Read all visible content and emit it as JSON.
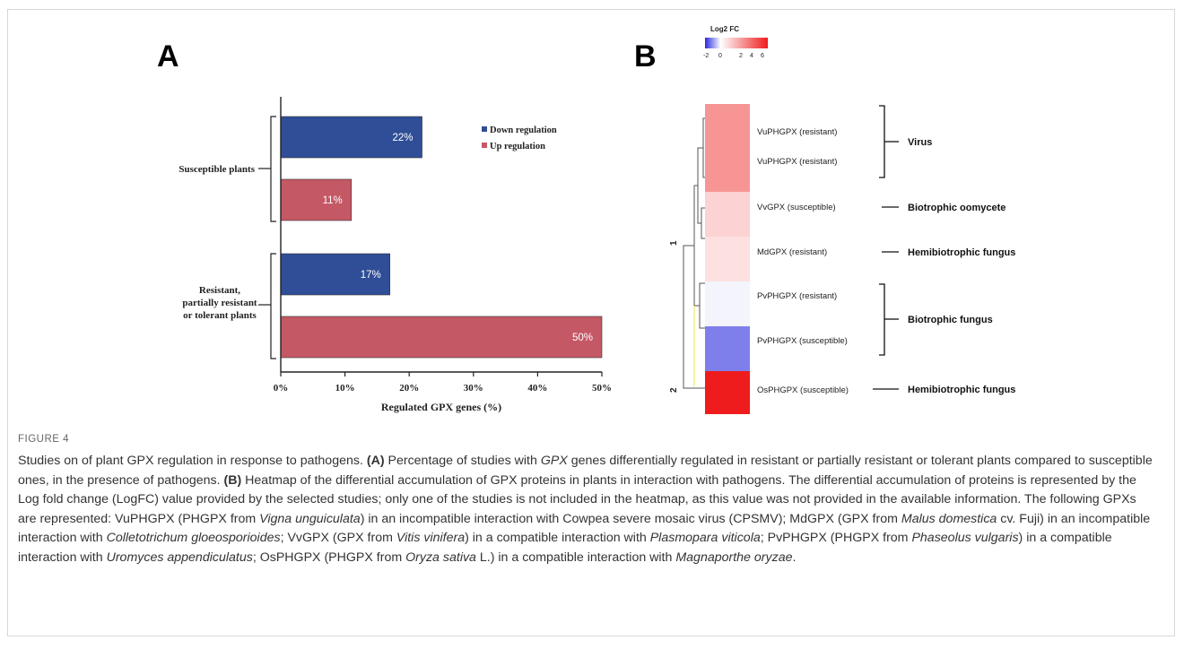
{
  "panel_a": {
    "letter": "A",
    "legend": {
      "down": "Down regulation",
      "up": "Up regulation"
    },
    "colors": {
      "down": "#2f4e97",
      "up": "#c45865"
    },
    "group_labels": {
      "susceptible": [
        "Susceptible plants"
      ],
      "resistant": [
        "Resistant,",
        "partially resistant",
        "or tolerant plants"
      ]
    },
    "tick_labels": [
      "0%",
      "10%",
      "20%",
      "30%",
      "40%",
      "50%"
    ],
    "bar_labels": [
      "22%",
      "11%",
      "17%",
      "50%"
    ]
  },
  "chart_data": {
    "type": "bar",
    "orientation": "horizontal",
    "categories": [
      "Susceptible plants",
      "Resistant, partially resistant or tolerant plants"
    ],
    "series": [
      {
        "name": "Down regulation",
        "values": [
          22,
          17
        ],
        "color": "#2f4e97"
      },
      {
        "name": "Up regulation",
        "values": [
          11,
          50
        ],
        "color": "#c45865"
      }
    ],
    "xlabel": "Regulated GPX genes (%)",
    "xlim": [
      0,
      50
    ],
    "xticks": [
      0,
      10,
      20,
      30,
      40,
      50
    ],
    "legend": "top-right",
    "grid": false
  },
  "panel_b": {
    "letter": "B",
    "legend_title": "Log2 FC",
    "legend_ticks": [
      "-2",
      "0",
      "2",
      "4",
      "6"
    ],
    "colorscale": {
      "min": -2,
      "max": 6,
      "low": "#2a2ae0",
      "mid": "#ffffff",
      "high": "#ee1c1c"
    },
    "rows": [
      {
        "label": "VuPHGPX (resistant)",
        "log2fc": 2.8
      },
      {
        "label": "VuPHGPX (resistant)",
        "log2fc": 2.8
      },
      {
        "label": "VvGPX  (susceptible)",
        "log2fc": 1.2
      },
      {
        "label": "MdGPX (resistant)",
        "log2fc": 0.8
      },
      {
        "label": "PvPHGPX (resistant)",
        "log2fc": -0.1
      },
      {
        "label": "PvPHGPX (susceptible)",
        "log2fc": -1.2
      },
      {
        "label": "OsPHGPX (susceptible)",
        "log2fc": 6
      }
    ],
    "cluster_labels": [
      "1",
      "2"
    ],
    "pathogen_groups": [
      "Virus",
      "Biotrophic oomycete",
      "Hemibiotrophic fungus",
      "Biotrophic fungus",
      "Hemibiotrophic fungus"
    ]
  },
  "caption": {
    "figure_label": "FIGURE 4",
    "intro": "Studies on of plant GPX regulation in response to pathogens. ",
    "a_label": "(A)",
    "a_text_1": " Percentage of studies with ",
    "a_gene": "GPX",
    "a_text_2": " genes differentially regulated in resistant or partially resistant or tolerant plants compared to susceptible ones, in the presence of pathogens. ",
    "b_label": "(B)",
    "b_text": " Heatmap of the differential accumulation of GPX proteins in plants in interaction with pathogens. The differential accumulation of proteins is represented by the Log fold change (LogFC) value provided by the selected studies; only one of the studies is not included in the heatmap, as this value was not provided in the available information. The following GPXs are represented: VuPHGPX (PHGPX from ",
    "sp_vigna": "Vigna unguiculata",
    "t1": ") in an incompatible interaction with Cowpea severe mosaic virus (CPSMV); MdGPX (GPX from ",
    "sp_malus": "Malus domestica",
    "t2": " cv. Fuji) in an incompatible interaction with ",
    "sp_colleto": "Colletotrichum gloeosporioides",
    "t3": "; VvGPX (GPX from ",
    "sp_vitis": "Vitis vinifera",
    "t4": ") in a compatible interaction with ",
    "sp_plasmo": "Plasmopara viticola",
    "t5": "; PvPHGPX (PHGPX from ",
    "sp_phaseolus": "Phaseolus vulgaris",
    "t6": ") in a compatible interaction with ",
    "sp_uromyces": "Uromyces appendiculatus",
    "t7": "; OsPHGPX (PHGPX from ",
    "sp_oryza": "Oryza sativa",
    "t8": " L.) in a compatible interaction with ",
    "sp_magna": "Magnaporthe oryzae",
    "t9": "."
  }
}
